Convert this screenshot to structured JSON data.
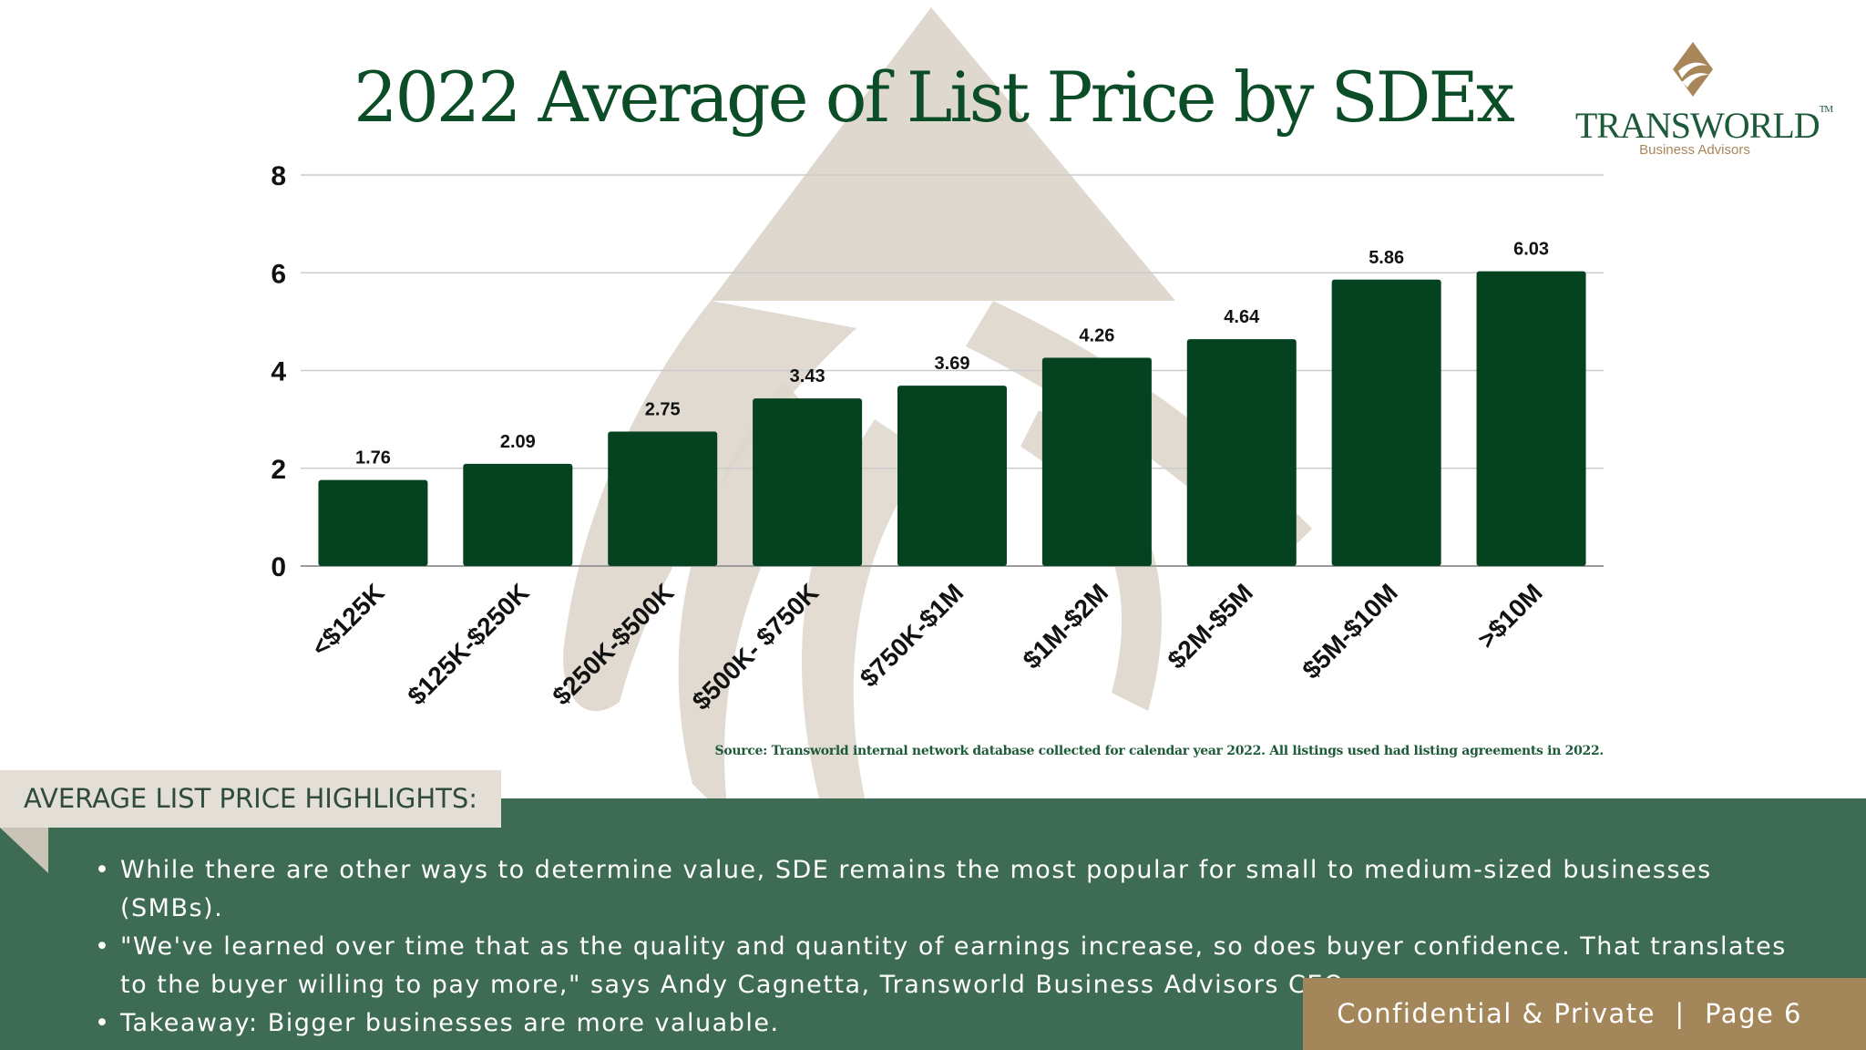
{
  "title": "2022 Average of List Price by SDEx",
  "logo": {
    "name": "TRANSWORLD",
    "tm": "TM",
    "tagline": "Business Advisors"
  },
  "colors": {
    "bar": "#054220",
    "title": "#0b4d26",
    "panel": "#3e6b53",
    "footer": "#a38659",
    "watermark": "#ddd6cb"
  },
  "chart_data": {
    "type": "bar",
    "categories": [
      "<$125K",
      "$125K-$250K",
      "$250K-$500K",
      "$500K- $750K",
      "$750K-$1M",
      "$1M-$2M",
      "$2M-$5M",
      "$5M-$10M",
      ">$10M"
    ],
    "values": [
      1.76,
      2.09,
      2.75,
      3.43,
      3.69,
      4.26,
      4.64,
      5.86,
      6.03
    ],
    "value_labels": [
      "1.76",
      "2.09",
      "2.75",
      "3.43",
      "3.69",
      "4.26",
      "4.64",
      "5.86",
      "6.03"
    ],
    "ylim": [
      0,
      8
    ],
    "yticks": [
      "0",
      "2",
      "4",
      "6",
      "8"
    ],
    "grid": true,
    "xlabel": "",
    "ylabel": ""
  },
  "source": "Source: Transworld internal network database collected for calendar year 2022. All listings used had listing agreements in 2022.",
  "highlights": {
    "heading": "AVERAGE LIST PRICE HIGHLIGHTS:",
    "bullets": [
      "While there are other ways to determine value, SDE remains the most popular for small to medium-sized businesses (SMBs).",
      "\"We've learned over time that as the quality and quantity of earnings increase, so does buyer confidence. That translates to the buyer willing to pay more,\" says Andy Cagnetta, Transworld Business Advisors CEO.",
      "Takeaway: Bigger businesses are more valuable."
    ]
  },
  "footer": "Confidential & Private  |  Page 6"
}
